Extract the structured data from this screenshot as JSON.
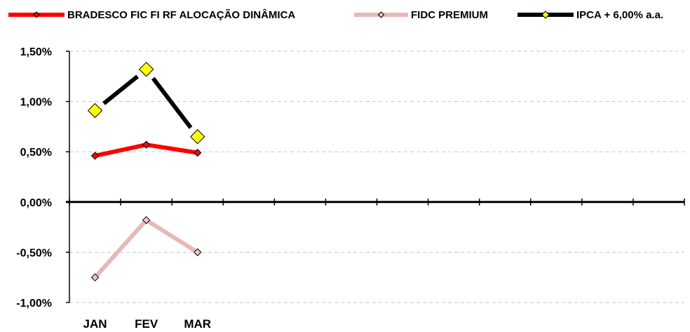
{
  "chart_data": {
    "type": "line",
    "categories": [
      "JAN",
      "FEV",
      "MAR",
      "",
      "",
      "",
      "",
      "",
      "",
      "",
      "",
      ""
    ],
    "series": [
      {
        "name": "BRADESCO FIC FI RF ALOCAÇÃO DINÂMICA",
        "values": [
          0.46,
          0.57,
          0.49,
          null,
          null,
          null,
          null,
          null,
          null,
          null,
          null,
          null
        ],
        "line_color": "#ff0000",
        "marker_fill": "#e01010",
        "marker": "diamond"
      },
      {
        "name": "FIDC PREMIUM",
        "values": [
          -0.75,
          -0.18,
          -0.5,
          null,
          null,
          null,
          null,
          null,
          null,
          null,
          null,
          null
        ],
        "line_color": "#e6b8b7",
        "marker_fill": "#f2c4c4",
        "marker": "diamond"
      },
      {
        "name": "IPCA + 6,00% a.a.",
        "values": [
          0.91,
          1.32,
          0.65,
          null,
          null,
          null,
          null,
          null,
          null,
          null,
          null,
          null
        ],
        "line_color": "#000000",
        "marker_fill": "#ffff00",
        "marker": "diamond-large"
      }
    ],
    "yticks": [
      1.5,
      1.0,
      0.5,
      0.0,
      -0.5,
      -1.0
    ],
    "ytick_labels": [
      "1,50%",
      "1,00%",
      "0,50%",
      "0,00%",
      "-0,50%",
      "-1,00%"
    ],
    "ylim": [
      -1.0,
      1.5
    ],
    "grid": true,
    "legend_position": "top"
  }
}
